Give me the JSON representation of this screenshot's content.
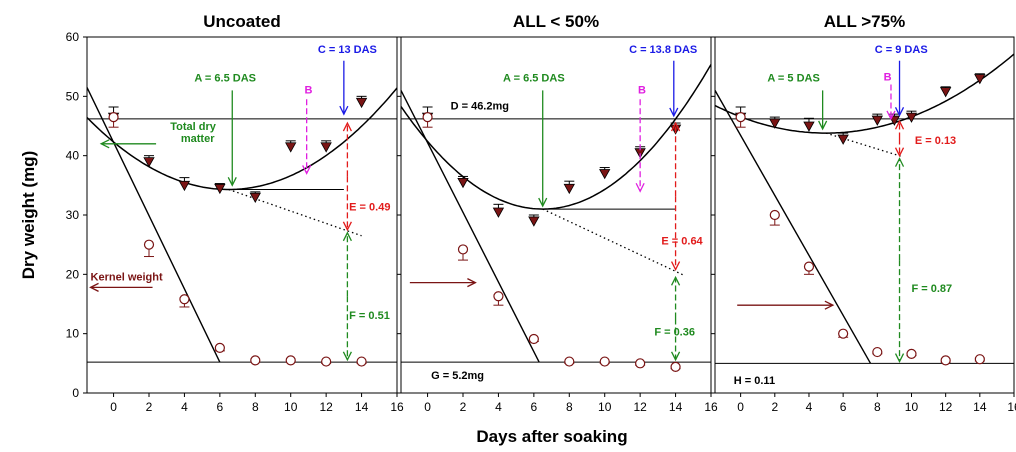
{
  "figure": {
    "ylabel": "Dry weight (mg)",
    "xlabel": "Days after soaking"
  },
  "chart_data": [
    {
      "type": "scatter",
      "title": "Uncoated",
      "xlim": [
        -1.5,
        16
      ],
      "ylim": [
        0,
        60
      ],
      "xticks": [
        0,
        2,
        4,
        6,
        8,
        10,
        12,
        14,
        16
      ],
      "yticks": [
        0,
        10,
        20,
        30,
        40,
        50,
        60
      ],
      "series": [
        {
          "name": "Total dry matter",
          "marker": "triangle-down",
          "color": "#7a1414",
          "x": [
            0,
            2,
            4,
            6,
            8,
            10,
            12,
            14
          ],
          "y": [
            46.5,
            39.0,
            35.0,
            34.5,
            33.0,
            41.5,
            41.5,
            49.0
          ],
          "err": [
            1.7,
            1.0,
            1.3,
            0.8,
            0.9,
            1.0,
            1.0,
            1.0
          ]
        },
        {
          "name": "Kernel weight",
          "marker": "circle-open",
          "color": "#7a1414",
          "x": [
            0,
            2,
            4,
            6,
            8,
            10,
            12,
            14
          ],
          "y": [
            46.5,
            25.0,
            15.8,
            7.6,
            5.5,
            5.5,
            5.3,
            5.3
          ],
          "err": [
            1.7,
            2.0,
            1.3,
            0.5,
            0.3,
            0.3,
            0.3,
            0.3
          ]
        }
      ],
      "fits": {
        "curve": {
          "vertex_x": 6.5,
          "vertex_y": 34.3,
          "a": 0.1895
        },
        "kernel_line": [
          [
            -1.5,
            51.5
          ],
          [
            6.0,
            5.2
          ]
        ],
        "baseline_y": 5.2,
        "total_y": 46.2,
        "min_hline": [
          [
            6.5,
            34.3
          ],
          [
            13.0,
            34.3
          ]
        ],
        "dotted": [
          [
            6.5,
            34.3
          ],
          [
            14.0,
            26.5
          ]
        ]
      },
      "annotations": [
        {
          "text": "A = 6.5 DAS",
          "color": "#1f8a1f"
        },
        {
          "text": "C = 13 DAS",
          "color": "#1a1ae6"
        },
        {
          "text": "B",
          "color": "#e020e0"
        },
        {
          "text": "E = 0.49",
          "color": "#e21b1b"
        },
        {
          "text": "F = 0.51",
          "color": "#1f8a1f"
        },
        {
          "text": "Total dry",
          "color": "#1f8a1f"
        },
        {
          "text": "matter",
          "color": "#1f8a1f"
        },
        {
          "text": "Kernel weight",
          "color": "#7a1414"
        }
      ]
    },
    {
      "type": "scatter",
      "title": "ALL < 50%",
      "xlim": [
        -1.5,
        16
      ],
      "ylim": [
        0,
        60
      ],
      "xticks": [
        0,
        2,
        4,
        6,
        8,
        10,
        12,
        14,
        16
      ],
      "yticks": [
        0,
        10,
        20,
        30,
        40,
        50,
        60
      ],
      "series": [
        {
          "name": "Total dry matter",
          "marker": "triangle-down",
          "color": "#7a1414",
          "x": [
            0,
            2,
            4,
            6,
            8,
            10,
            12,
            14
          ],
          "y": [
            46.5,
            35.5,
            30.5,
            29.0,
            34.5,
            37.0,
            40.5,
            44.5
          ],
          "err": [
            1.7,
            1.0,
            1.3,
            1.0,
            1.2,
            1.0,
            1.0,
            1.0
          ]
        },
        {
          "name": "Kernel weight",
          "marker": "circle-open",
          "color": "#7a1414",
          "x": [
            0,
            2,
            4,
            6,
            8,
            10,
            12,
            14
          ],
          "y": [
            46.5,
            24.2,
            16.3,
            9.1,
            5.3,
            5.3,
            5.0,
            4.4
          ],
          "err": [
            1.7,
            1.8,
            1.5,
            0.4,
            0.3,
            0.3,
            0.3,
            0.3
          ]
        }
      ],
      "fits": {
        "curve": {
          "vertex_x": 6.5,
          "vertex_y": 31.0,
          "a": 0.27
        },
        "kernel_line": [
          [
            -1.5,
            51.0
          ],
          [
            6.3,
            5.2
          ]
        ],
        "baseline_y": 5.2,
        "total_y": 46.2,
        "min_hline": [
          [
            6.5,
            31.0
          ],
          [
            14.0,
            31.0
          ]
        ],
        "dotted": [
          [
            6.5,
            31.0
          ],
          [
            14.5,
            19.8
          ]
        ]
      },
      "annotations": [
        {
          "text": "A = 6.5 DAS",
          "color": "#1f8a1f"
        },
        {
          "text": "C = 13.8 DAS",
          "color": "#1a1ae6"
        },
        {
          "text": "B",
          "color": "#e020e0"
        },
        {
          "text": "E = 0.64",
          "color": "#e21b1b"
        },
        {
          "text": "F = 0.36",
          "color": "#1f8a1f"
        },
        {
          "text": "D = 46.2mg",
          "color": "#000000"
        },
        {
          "text": "G = 5.2mg",
          "color": "#000000"
        }
      ]
    },
    {
      "type": "scatter",
      "title": "ALL >75%",
      "xlim": [
        -1.5,
        16
      ],
      "ylim": [
        0,
        60
      ],
      "xticks": [
        0,
        2,
        4,
        6,
        8,
        10,
        12,
        14,
        16
      ],
      "yticks": [
        0,
        10,
        20,
        30,
        40,
        50,
        60
      ],
      "series": [
        {
          "name": "Total dry matter",
          "marker": "triangle-down",
          "color": "#7a1414",
          "x": [
            0,
            2,
            4,
            6,
            8,
            9,
            10,
            12,
            14
          ],
          "y": [
            46.5,
            45.5,
            45.0,
            42.8,
            46.0,
            46.0,
            46.5,
            50.8,
            53.0
          ],
          "err": [
            1.7,
            1.0,
            1.3,
            1.0,
            1.0,
            1.0,
            1.0,
            0.8,
            0.8
          ]
        },
        {
          "name": "Kernel weight",
          "marker": "circle-open",
          "color": "#7a1414",
          "x": [
            0,
            2,
            4,
            6,
            8,
            10,
            12,
            14
          ],
          "y": [
            46.5,
            30.0,
            21.3,
            10.0,
            6.9,
            6.6,
            5.5,
            5.7
          ],
          "err": [
            1.7,
            1.7,
            1.3,
            0.6,
            0.3,
            0.3,
            0.3,
            0.3
          ]
        }
      ],
      "fits": {
        "curve": {
          "vertex_x": 5.0,
          "vertex_y": 43.8,
          "a": 0.11
        },
        "kernel_line": [
          [
            -1.5,
            51.0
          ],
          [
            7.6,
            5.0
          ]
        ],
        "baseline_y": 5.0,
        "total_y": 46.2,
        "min_hline": null,
        "dotted": [
          [
            5.0,
            43.8
          ],
          [
            9.5,
            39.8
          ]
        ]
      },
      "annotations": [
        {
          "text": "A = 5 DAS",
          "color": "#1f8a1f"
        },
        {
          "text": "C = 9 DAS",
          "color": "#1a1ae6"
        },
        {
          "text": "B",
          "color": "#e020e0"
        },
        {
          "text": "E = 0.13",
          "color": "#e21b1b"
        },
        {
          "text": "F = 0.87",
          "color": "#1f8a1f"
        },
        {
          "text": "H = 0.11",
          "color": "#000000"
        }
      ]
    }
  ]
}
